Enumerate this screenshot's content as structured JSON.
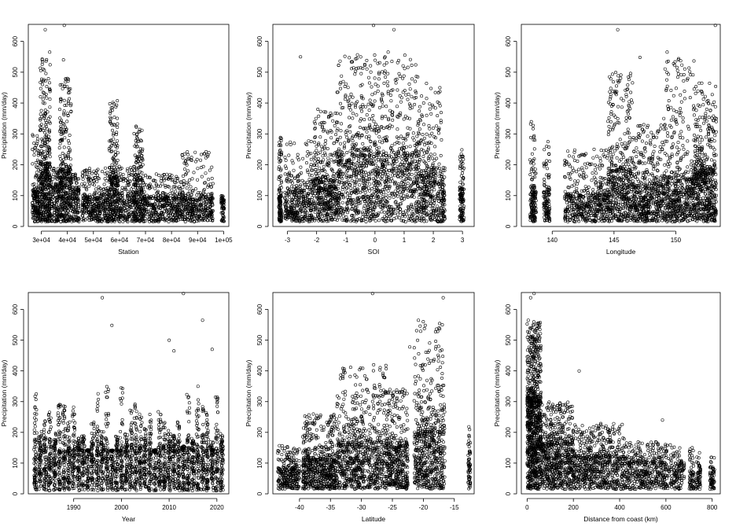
{
  "chart_data": [
    {
      "type": "scatter",
      "xlabel": "Station",
      "ylabel": "Precipitation (mm/day)",
      "xlim": [
        25000,
        102000
      ],
      "ylim": [
        0,
        655
      ],
      "xticks": [
        30000,
        40000,
        50000,
        60000,
        70000,
        80000,
        90000,
        100000
      ],
      "xtick_labels": [
        "3e+04",
        "4e+04",
        "5e+04",
        "6e+04",
        "7e+04",
        "8e+04",
        "9e+04",
        "1e+05"
      ],
      "yticks": [
        0,
        100,
        200,
        300,
        400,
        500,
        600
      ],
      "ytick_labels": [
        "0",
        "100",
        "200",
        "300",
        "400",
        "500",
        "600"
      ],
      "marker": "open-circle",
      "grid": false,
      "clusters": [
        {
          "x": [
            26500,
            29500
          ],
          "base": 110,
          "peak": 300,
          "n": 60
        },
        {
          "x": [
            29500,
            33500
          ],
          "base": 200,
          "peak": 560,
          "n": 140
        },
        {
          "x": [
            33500,
            37000
          ],
          "base": 120,
          "peak": 200,
          "n": 50
        },
        {
          "x": [
            37000,
            41500
          ],
          "base": 180,
          "peak": 480,
          "n": 120
        },
        {
          "x": [
            41500,
            44500
          ],
          "base": 110,
          "peak": 170,
          "n": 40
        },
        {
          "x": [
            45500,
            56000
          ],
          "base": 90,
          "peak": 190,
          "n": 120
        },
        {
          "x": [
            56000,
            59500
          ],
          "base": 160,
          "peak": 410,
          "n": 90
        },
        {
          "x": [
            59500,
            65500
          ],
          "base": 100,
          "peak": 200,
          "n": 60
        },
        {
          "x": [
            65500,
            69000
          ],
          "base": 150,
          "peak": 330,
          "n": 80
        },
        {
          "x": [
            69000,
            84000
          ],
          "base": 90,
          "peak": 170,
          "n": 140
        },
        {
          "x": [
            84000,
            96000
          ],
          "base": 90,
          "peak": 250,
          "n": 120
        },
        {
          "x": [
            99000,
            100300
          ],
          "base": 80,
          "peak": 100,
          "n": 20
        }
      ],
      "outliers": [
        [
          31500,
          638
        ],
        [
          38800,
          652
        ],
        [
          33200,
          565
        ],
        [
          38500,
          540
        ]
      ]
    },
    {
      "type": "scatter",
      "xlabel": "SOI",
      "ylabel": "Precipitation (mm/day)",
      "xlim": [
        -3.5,
        3.4
      ],
      "ylim": [
        0,
        655
      ],
      "xticks": [
        -3,
        -2,
        -1,
        0,
        1,
        2,
        3
      ],
      "xtick_labels": [
        "-3",
        "-2",
        "-1",
        "0",
        "1",
        "2",
        "3"
      ],
      "yticks": [
        0,
        100,
        200,
        300,
        400,
        500,
        600
      ],
      "ytick_labels": [
        "0",
        "100",
        "200",
        "300",
        "400",
        "500",
        "600"
      ],
      "marker": "open-circle",
      "grid": false,
      "clusters": [
        {
          "x": [
            -3.3,
            -3.2
          ],
          "base": 100,
          "peak": 340,
          "n": 40
        },
        {
          "x": [
            -3.1,
            -2.1
          ],
          "base": 110,
          "peak": 280,
          "n": 120
        },
        {
          "x": [
            -2.1,
            -1.3
          ],
          "base": 150,
          "peak": 380,
          "n": 140
        },
        {
          "x": [
            -1.3,
            1.5
          ],
          "base": 230,
          "peak": 560,
          "n": 420
        },
        {
          "x": [
            1.5,
            2.3
          ],
          "base": 170,
          "peak": 470,
          "n": 120
        },
        {
          "x": [
            2.3,
            2.4
          ],
          "base": 110,
          "peak": 200,
          "n": 20
        },
        {
          "x": [
            2.9,
            3.05
          ],
          "base": 120,
          "peak": 250,
          "n": 40
        }
      ],
      "outliers": [
        [
          -0.05,
          652
        ],
        [
          0.65,
          638
        ],
        [
          -2.55,
          550
        ],
        [
          0.45,
          565
        ],
        [
          0.95,
          480
        ]
      ]
    },
    {
      "type": "scatter",
      "xlabel": "Longitude",
      "ylabel": "Precipitation (mm/day)",
      "xlim": [
        137.5,
        153.6
      ],
      "ylim": [
        0,
        655
      ],
      "xticks": [
        140,
        145,
        150
      ],
      "xtick_labels": [
        "140",
        "145",
        "150"
      ],
      "yticks": [
        0,
        100,
        200,
        300,
        400,
        500,
        600
      ],
      "ytick_labels": [
        "0",
        "100",
        "200",
        "300",
        "400",
        "500",
        "600"
      ],
      "marker": "open-circle",
      "grid": false,
      "clusters": [
        {
          "x": [
            138.2,
            138.7
          ],
          "base": 110,
          "peak": 340,
          "n": 50
        },
        {
          "x": [
            139.3,
            139.8
          ],
          "base": 110,
          "peak": 280,
          "n": 40
        },
        {
          "x": [
            141.0,
            144.5
          ],
          "base": 100,
          "peak": 250,
          "n": 160
        },
        {
          "x": [
            144.5,
            146.5
          ],
          "base": 180,
          "peak": 500,
          "n": 160
        },
        {
          "x": [
            146.5,
            149.0
          ],
          "base": 130,
          "peak": 330,
          "n": 160
        },
        {
          "x": [
            149.0,
            151.5
          ],
          "base": 150,
          "peak": 560,
          "n": 180
        },
        {
          "x": [
            151.5,
            153.3
          ],
          "base": 180,
          "peak": 470,
          "n": 180
        }
      ],
      "outliers": [
        [
          145.3,
          638
        ],
        [
          153.2,
          652
        ],
        [
          147.1,
          548
        ],
        [
          149.3,
          565
        ],
        [
          150.2,
          540
        ]
      ]
    },
    {
      "type": "scatter",
      "xlabel": "Year",
      "ylabel": "Precipitation (mm/day)",
      "xlim": [
        1980.5,
        2022.5
      ],
      "ylim": [
        0,
        655
      ],
      "xticks": [
        1990,
        2000,
        2010,
        2020
      ],
      "xtick_labels": [
        "1990",
        "2000",
        "2010",
        "2020"
      ],
      "yticks": [
        0,
        100,
        200,
        300,
        400,
        500,
        600
      ],
      "ytick_labels": [
        "0",
        "100",
        "200",
        "300",
        "400",
        "500",
        "600"
      ],
      "marker": "open-circle",
      "grid": false,
      "year_columns": [
        1982,
        2021
      ],
      "column_base": 140,
      "column_peak": 380,
      "outliers": [
        [
          1996,
          638
        ],
        [
          2013,
          652
        ],
        [
          1998,
          548
        ],
        [
          2017,
          565
        ],
        [
          2019,
          470
        ],
        [
          2010,
          500
        ],
        [
          2011,
          465
        ]
      ]
    },
    {
      "type": "scatter",
      "xlabel": "Latitude",
      "ylabel": "Precipitation (mm/day)",
      "xlim": [
        -44.3,
        -11.8
      ],
      "ylim": [
        0,
        655
      ],
      "xticks": [
        -40,
        -35,
        -30,
        -25,
        -20,
        -15
      ],
      "xtick_labels": [
        "-40",
        "-35",
        "-30",
        "-25",
        "-20",
        "-15"
      ],
      "yticks": [
        0,
        100,
        200,
        300,
        400,
        500,
        600
      ],
      "ytick_labels": [
        "0",
        "100",
        "200",
        "300",
        "400",
        "500",
        "600"
      ],
      "marker": "open-circle",
      "grid": false,
      "clusters": [
        {
          "x": [
            -43.5,
            -40.0
          ],
          "base": 80,
          "peak": 160,
          "n": 90
        },
        {
          "x": [
            -39.5,
            -34.0
          ],
          "base": 110,
          "peak": 260,
          "n": 200
        },
        {
          "x": [
            -34.0,
            -26.0
          ],
          "base": 160,
          "peak": 420,
          "n": 260
        },
        {
          "x": [
            -26.0,
            -22.5
          ],
          "base": 150,
          "peak": 350,
          "n": 140
        },
        {
          "x": [
            -21.5,
            -16.5
          ],
          "base": 200,
          "peak": 560,
          "n": 200
        },
        {
          "x": [
            -12.8,
            -12.4
          ],
          "base": 110,
          "peak": 230,
          "n": 20
        }
      ],
      "outliers": [
        [
          -28.2,
          652
        ],
        [
          -16.8,
          638
        ],
        [
          -20.8,
          565
        ],
        [
          -19.7,
          548
        ],
        [
          -22.2,
          478
        ]
      ]
    },
    {
      "type": "scatter",
      "xlabel": "Distance from coast (km)",
      "ylabel": "Precipitation (mm/day)",
      "xlim": [
        -25,
        835
      ],
      "ylim": [
        0,
        655
      ],
      "xticks": [
        0,
        200,
        400,
        600,
        800
      ],
      "xtick_labels": [
        "0",
        "200",
        "400",
        "600",
        "800"
      ],
      "yticks": [
        0,
        100,
        200,
        300,
        400,
        500,
        600
      ],
      "ytick_labels": [
        "0",
        "100",
        "200",
        "300",
        "400",
        "500",
        "600"
      ],
      "marker": "open-circle",
      "grid": false,
      "clusters": [
        {
          "x": [
            0,
            60
          ],
          "base": 300,
          "peak": 560,
          "n": 300
        },
        {
          "x": [
            60,
            200
          ],
          "base": 160,
          "peak": 300,
          "n": 220
        },
        {
          "x": [
            200,
            420
          ],
          "base": 120,
          "peak": 230,
          "n": 220
        },
        {
          "x": [
            420,
            600
          ],
          "base": 100,
          "peak": 170,
          "n": 140
        },
        {
          "x": [
            600,
            680
          ],
          "base": 90,
          "peak": 160,
          "n": 50
        },
        {
          "x": [
            700,
            720
          ],
          "base": 70,
          "peak": 150,
          "n": 20
        },
        {
          "x": [
            730,
            750
          ],
          "base": 70,
          "peak": 155,
          "n": 20
        },
        {
          "x": [
            790,
            810
          ],
          "base": 70,
          "peak": 120,
          "n": 20
        }
      ],
      "outliers": [
        [
          15,
          638
        ],
        [
          30,
          652
        ],
        [
          5,
          565
        ],
        [
          20,
          540
        ],
        [
          225,
          400
        ],
        [
          585,
          240
        ]
      ]
    }
  ]
}
